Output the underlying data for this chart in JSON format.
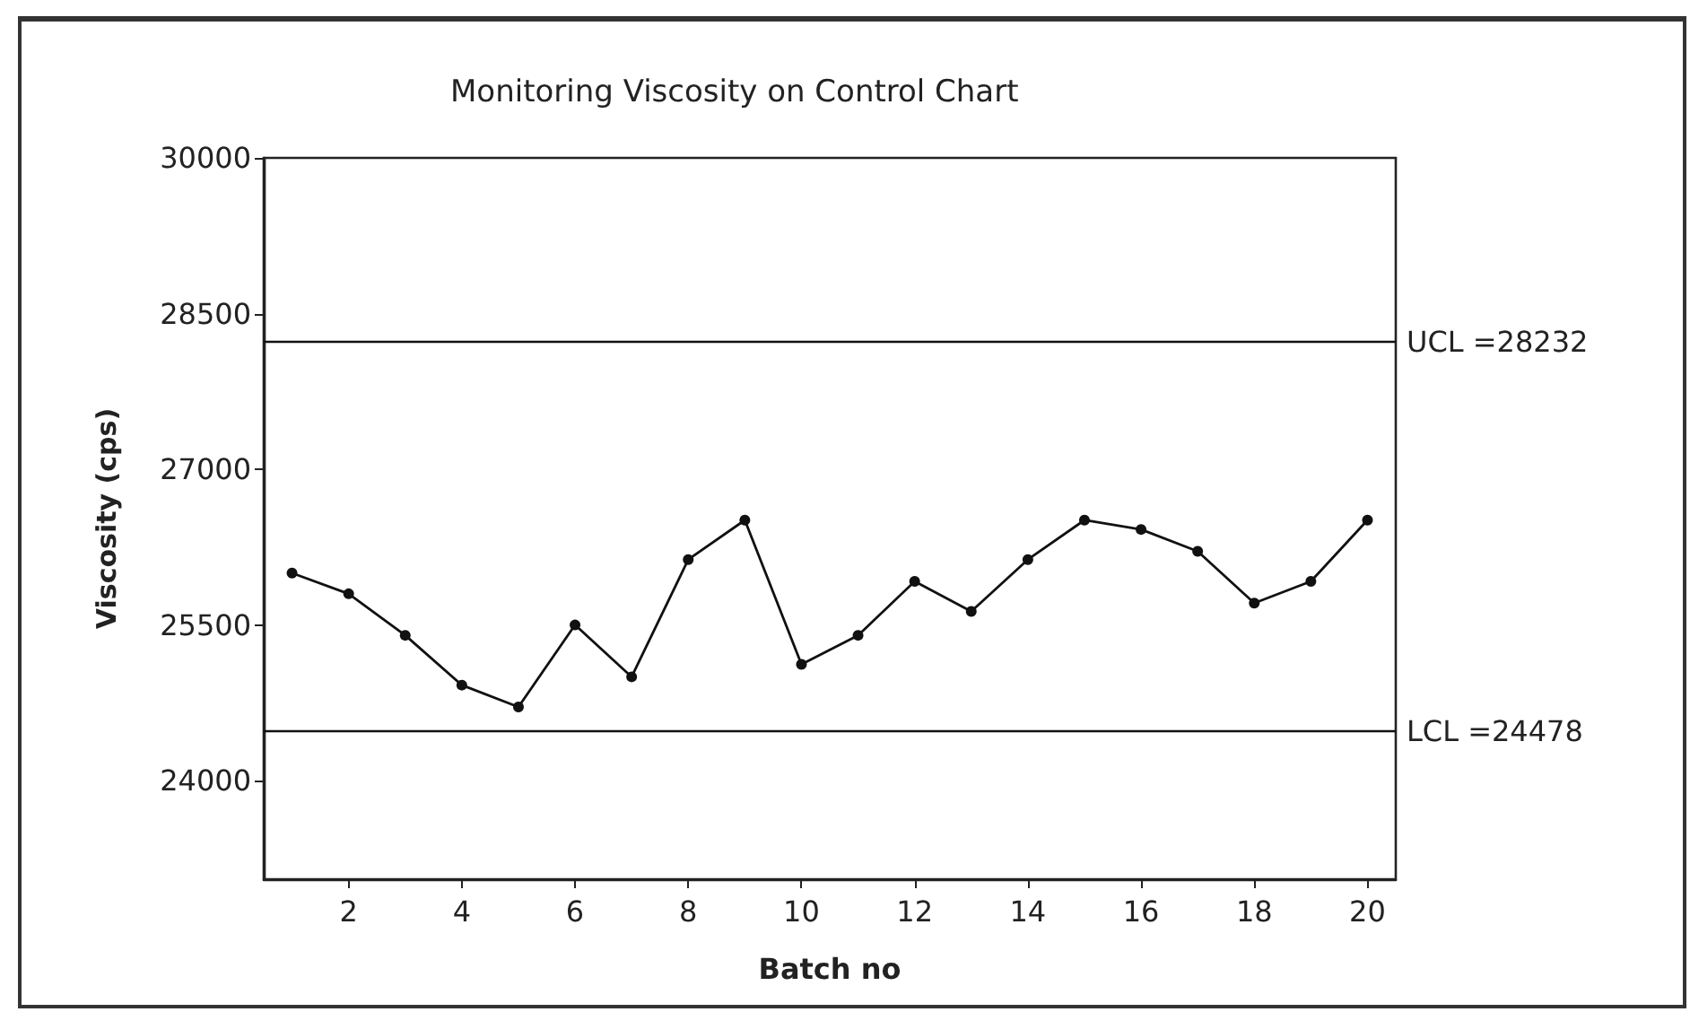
{
  "chart_data": {
    "type": "line",
    "title": "Monitoring Viscosity on Control Chart",
    "xlabel": "Batch no",
    "ylabel": "Viscosity (cps)",
    "x": [
      1,
      2,
      3,
      4,
      5,
      6,
      7,
      8,
      9,
      10,
      11,
      12,
      13,
      14,
      15,
      16,
      17,
      18,
      19,
      20
    ],
    "series": [
      {
        "color": "#111111",
        "values": [
          26000,
          25800,
          25400,
          24920,
          24710,
          25500,
          25000,
          26130,
          26510,
          25120,
          25400,
          25920,
          25630,
          26130,
          26510,
          26420,
          26210,
          25710,
          25920,
          26510
        ]
      }
    ],
    "xlim": [
      0.5,
      20.5
    ],
    "xticks": [
      2,
      4,
      6,
      8,
      10,
      12,
      14,
      16,
      18,
      20
    ],
    "ylim": [
      23050,
      30000
    ],
    "yticks": [
      24000,
      25500,
      27000,
      28500,
      30000
    ],
    "marker": "circle",
    "line_style": "solid",
    "ref_lines": [
      {
        "axis": "y",
        "value": 28232,
        "label": "UCL =28232",
        "color": "#111111"
      },
      {
        "axis": "y",
        "value": 24478,
        "label": "LCL =24478",
        "color": "#111111"
      }
    ]
  }
}
